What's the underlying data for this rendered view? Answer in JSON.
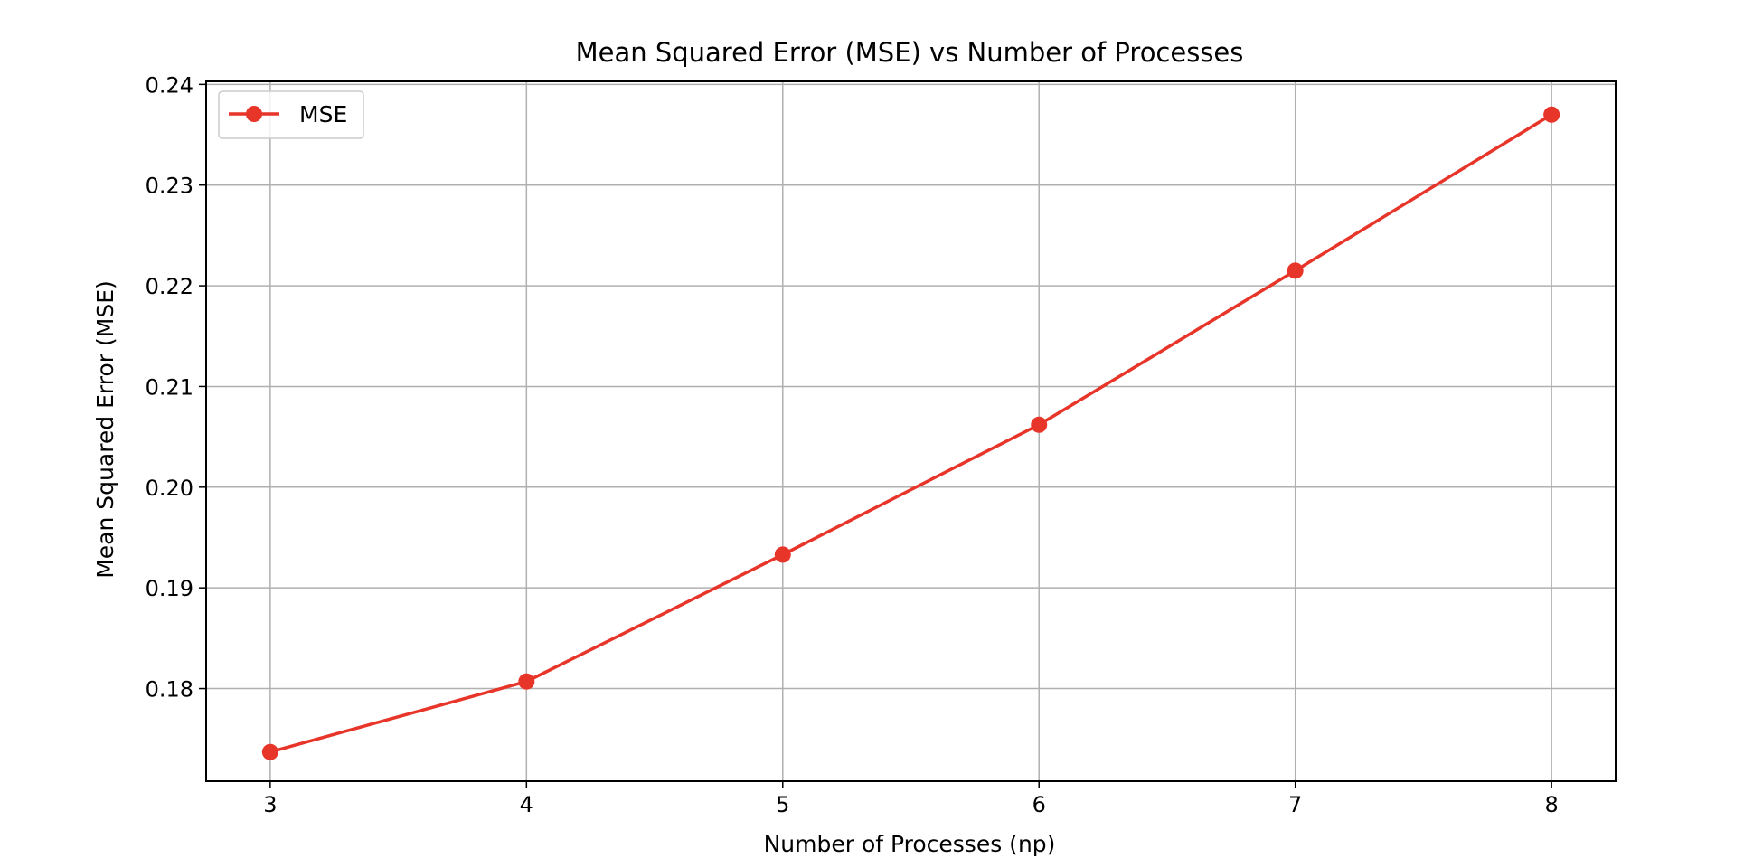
{
  "chart_data": {
    "type": "line",
    "title": "Mean Squared Error (MSE) vs Number of Processes",
    "xlabel": "Number of Processes (np)",
    "ylabel": "Mean Squared Error (MSE)",
    "x": [
      3,
      4,
      5,
      6,
      7,
      8
    ],
    "xlim": [
      2.75,
      8.25
    ],
    "ylim": [
      0.1708,
      0.2403
    ],
    "xticks": [
      3,
      4,
      5,
      6,
      7,
      8
    ],
    "yticks": [
      0.18,
      0.19,
      0.2,
      0.21,
      0.22,
      0.23,
      0.24
    ],
    "ytick_labels": [
      "0.18",
      "0.19",
      "0.20",
      "0.21",
      "0.22",
      "0.23",
      "0.24"
    ],
    "grid": true,
    "legend_position": "top-left",
    "series": [
      {
        "name": "MSE",
        "color": "#e8352a",
        "marker": "circle",
        "values": [
          0.1737,
          0.1807,
          0.1933,
          0.2062,
          0.2215,
          0.237
        ]
      }
    ]
  }
}
